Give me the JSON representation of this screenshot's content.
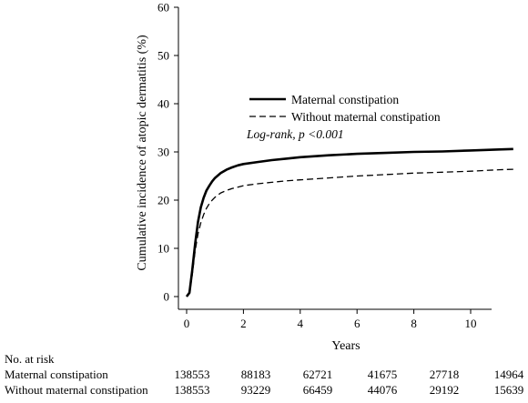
{
  "chart_data": {
    "type": "line",
    "title": "",
    "xlabel": "Years",
    "ylabel": "Cumulative incidence of atopic dermatitis (%)",
    "xlim": [
      0,
      12
    ],
    "ylim": [
      0,
      60
    ],
    "xticks": [
      0,
      2,
      4,
      6,
      8,
      10
    ],
    "yticks": [
      0,
      10,
      20,
      30,
      40,
      50,
      60
    ],
    "grid": false,
    "legend_position": "upper-middle",
    "annotation": "Log-rank, p <0.001",
    "series": [
      {
        "name": "Maternal constipation",
        "style": "solid",
        "x": [
          0,
          0.1,
          0.2,
          0.3,
          0.4,
          0.5,
          0.6,
          0.7,
          0.8,
          0.9,
          1.0,
          1.2,
          1.4,
          1.6,
          1.8,
          2.0,
          2.5,
          3,
          3.5,
          4,
          5,
          6,
          7,
          8,
          9,
          10,
          11,
          11.5
        ],
        "y": [
          0,
          0.8,
          5.5,
          11,
          15.5,
          18.5,
          20.5,
          22,
          23,
          23.9,
          24.6,
          25.6,
          26.3,
          26.8,
          27.2,
          27.5,
          27.9,
          28.3,
          28.6,
          28.9,
          29.3,
          29.6,
          29.8,
          30.0,
          30.1,
          30.3,
          30.5,
          30.6
        ]
      },
      {
        "name": "Without maternal constipation",
        "style": "dashed",
        "x": [
          0,
          0.1,
          0.2,
          0.3,
          0.4,
          0.5,
          0.6,
          0.7,
          0.8,
          0.9,
          1.0,
          1.2,
          1.4,
          1.6,
          1.8,
          2.0,
          2.5,
          3,
          3.5,
          4,
          5,
          6,
          7,
          8,
          9,
          10,
          11,
          11.5
        ],
        "y": [
          0,
          0.7,
          4.5,
          9.5,
          13,
          15.3,
          17,
          18.3,
          19.3,
          20.0,
          20.6,
          21.5,
          22.0,
          22.4,
          22.7,
          23.0,
          23.4,
          23.7,
          24.0,
          24.2,
          24.6,
          25.0,
          25.3,
          25.6,
          25.8,
          26.0,
          26.3,
          26.4
        ]
      }
    ],
    "risk_table": {
      "heading": "No. at risk",
      "rows": [
        {
          "label": "Maternal constipation",
          "values": [
            "138553",
            "88183",
            "62721",
            "41675",
            "27718",
            "14964"
          ]
        },
        {
          "label": "Without maternal constipation",
          "values": [
            "138553",
            "93229",
            "66459",
            "44076",
            "29192",
            "15639"
          ]
        }
      ]
    }
  }
}
